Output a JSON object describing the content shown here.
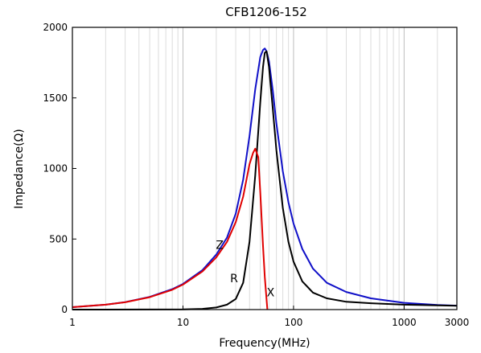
{
  "chart_data": {
    "type": "line",
    "title": "CFB1206-152",
    "xlabel": "Frequency(MHz)",
    "ylabel": "Impedance(Ω)",
    "x_scale": "log",
    "xlim": [
      1,
      3000
    ],
    "ylim": [
      0,
      2000
    ],
    "x_ticks": [
      {
        "value": 1,
        "label": "1"
      },
      {
        "value": 10,
        "label": "10"
      },
      {
        "value": 100,
        "label": "100"
      },
      {
        "value": 1000,
        "label": "1000"
      },
      {
        "value": 3000,
        "label": "3000"
      }
    ],
    "y_ticks": [
      {
        "value": 0,
        "label": "0"
      },
      {
        "value": 500,
        "label": "500"
      },
      {
        "value": 1000,
        "label": "1000"
      },
      {
        "value": 1500,
        "label": "1500"
      },
      {
        "value": 2000,
        "label": "2000"
      }
    ],
    "grid": "vertical log grid",
    "series": [
      {
        "name": "Z",
        "color": "#1010c8",
        "label_at": {
          "x": 21.5,
          "y": 430
        },
        "x": [
          1,
          2,
          3,
          5,
          8,
          10,
          15,
          20,
          25,
          30,
          35,
          40,
          45,
          50,
          53,
          55,
          57,
          60,
          65,
          70,
          80,
          90,
          100,
          120,
          150,
          200,
          300,
          500,
          1000,
          2000,
          3000
        ],
        "y": [
          17,
          35,
          53,
          90,
          145,
          182,
          280,
          390,
          510,
          680,
          920,
          1230,
          1560,
          1790,
          1840,
          1850,
          1830,
          1760,
          1550,
          1320,
          980,
          760,
          610,
          430,
          290,
          190,
          125,
          80,
          48,
          33,
          28
        ]
      },
      {
        "name": "R",
        "color": "#000000",
        "label_at": {
          "x": 29,
          "y": 195
        },
        "x": [
          1,
          10,
          15,
          20,
          25,
          30,
          35,
          40,
          45,
          50,
          53,
          55,
          57,
          60,
          65,
          70,
          80,
          90,
          100,
          120,
          150,
          200,
          300,
          500,
          1000,
          2000,
          3000
        ],
        "y": [
          0,
          1,
          5,
          15,
          35,
          75,
          190,
          480,
          950,
          1470,
          1720,
          1820,
          1830,
          1720,
          1420,
          1130,
          720,
          480,
          340,
          200,
          120,
          80,
          55,
          45,
          35,
          30,
          27
        ]
      },
      {
        "name": "X",
        "color": "#e00000",
        "label_at": {
          "x": 62,
          "y": 95
        },
        "x": [
          1,
          2,
          3,
          5,
          8,
          10,
          15,
          20,
          25,
          30,
          35,
          40,
          43,
          45,
          48,
          50,
          53,
          55,
          58
        ],
        "y": [
          17,
          35,
          52,
          88,
          140,
          177,
          270,
          370,
          480,
          620,
          800,
          1030,
          1110,
          1140,
          1080,
          830,
          450,
          230,
          0
        ]
      }
    ]
  }
}
